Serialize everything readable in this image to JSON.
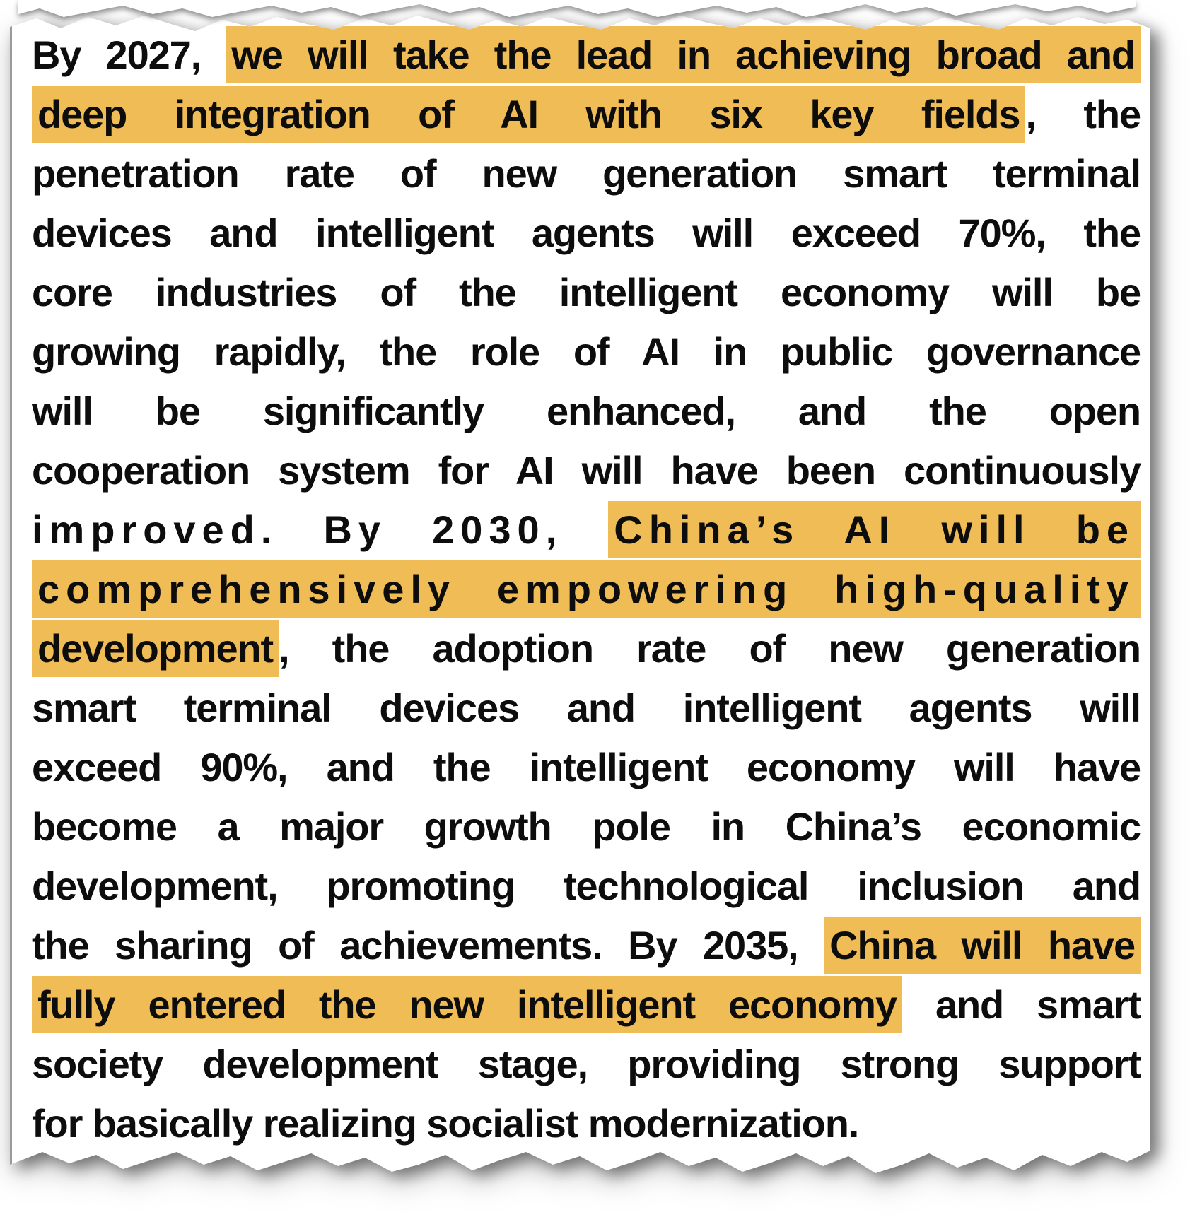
{
  "document": {
    "kind": "scanned-text-excerpt",
    "paper_color": "#ffffff",
    "text_color": "#0d0d0d",
    "highlight_color": "#F0BC55",
    "full_text": "By 2027, we will take the lead in achieving broad and deep integration of AI with six key fields, the penetration rate of new generation smart terminal devices and intelligent agents will exceed 70%, the core industries of the intelligent economy will be growing rapidly, the role of AI in public governance will be significantly enhanced, and the open cooperation system for AI will have been continuously improved. By 2030, China’s AI will be comprehensively empowering high-quality development, the adoption rate of new generation smart terminal devices and intelligent agents will exceed 90%, and the intelligent economy will have become a major growth pole in China’s economic development, promoting technological inclusion and the sharing of achievements. By 2035, China will have fully entered the new intelligent economy and smart society development stage, providing strong support for basically realizing socialist modernization.",
    "highlighted_phrases": [
      "we will take the lead in achieving broad and deep integration of AI with six key fields",
      "China’s AI will be comprehensively empowering high-quality development",
      "China will have fully entered the new intelligent economy"
    ],
    "lines": [
      {
        "segments": [
          {
            "text": "By 2027, ",
            "highlight": false
          },
          {
            "text": "we will take the lead in achieving broad and",
            "highlight": true
          }
        ]
      },
      {
        "segments": [
          {
            "text": "deep integration of AI with six key fields",
            "highlight": true
          },
          {
            "text": ", the",
            "highlight": false
          }
        ]
      },
      {
        "segments": [
          {
            "text": "penetration rate of new generation smart terminal",
            "highlight": false
          }
        ]
      },
      {
        "segments": [
          {
            "text": "devices and intelligent agents will exceed 70%, the",
            "highlight": false
          }
        ]
      },
      {
        "segments": [
          {
            "text": "core industries of the intelligent economy will be",
            "highlight": false
          }
        ]
      },
      {
        "segments": [
          {
            "text": "growing rapidly, the role of AI in public governance",
            "highlight": false
          }
        ]
      },
      {
        "segments": [
          {
            "text": "will be significantly enhanced, and the open",
            "highlight": false
          }
        ]
      },
      {
        "segments": [
          {
            "text": "cooperation system for AI will have been continuously",
            "highlight": false
          }
        ]
      },
      {
        "tracked": true,
        "segments": [
          {
            "text": "improved. By 2030, ",
            "highlight": false
          },
          {
            "text": "China’s AI will be",
            "highlight": true
          }
        ]
      },
      {
        "tracked": true,
        "segments": [
          {
            "text": "comprehensively empowering high-quality",
            "highlight": true
          }
        ]
      },
      {
        "segments": [
          {
            "text": "development",
            "highlight": true
          },
          {
            "text": ", the adoption rate of new generation",
            "highlight": false
          }
        ]
      },
      {
        "segments": [
          {
            "text": "smart terminal devices and intelligent agents will",
            "highlight": false
          }
        ]
      },
      {
        "segments": [
          {
            "text": "exceed 90%, and the intelligent economy will have",
            "highlight": false
          }
        ]
      },
      {
        "segments": [
          {
            "text": "become a major growth pole in China’s economic",
            "highlight": false
          }
        ]
      },
      {
        "segments": [
          {
            "text": "development, promoting technological inclusion and",
            "highlight": false
          }
        ]
      },
      {
        "segments": [
          {
            "text": "the sharing of achievements. By 2035, ",
            "highlight": false
          },
          {
            "text": "China will have",
            "highlight": true
          }
        ]
      },
      {
        "segments": [
          {
            "text": "fully entered the new intelligent economy",
            "highlight": true
          },
          {
            "text": " and smart",
            "highlight": false
          }
        ]
      },
      {
        "segments": [
          {
            "text": "society development stage, providing strong support",
            "highlight": false
          }
        ]
      },
      {
        "align": "left",
        "segments": [
          {
            "text": "for basically realizing socialist modernization.",
            "highlight": false
          }
        ]
      }
    ]
  }
}
